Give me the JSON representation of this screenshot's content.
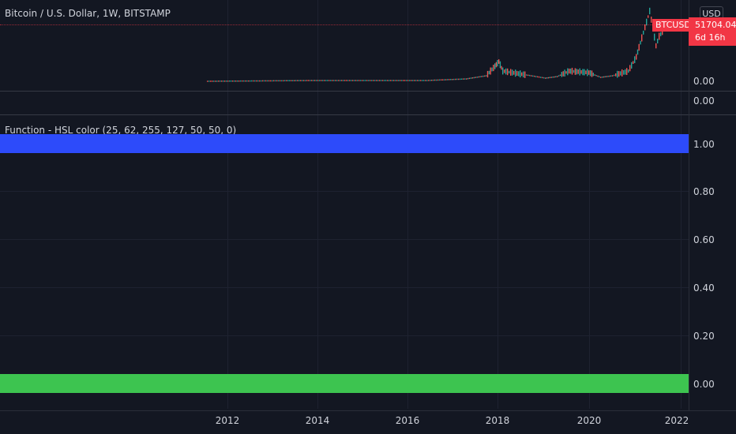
{
  "header": {
    "symbol_title": "Bitcoin / U.S. Dollar, 1W, BITSTAMP"
  },
  "price_scale": {
    "currency": "USD",
    "ticker": "BTCUSD",
    "last_price": "51704.04",
    "countdown": "6d 16h",
    "main_zero": "0.00",
    "pane2_zero": "0.00"
  },
  "indicator": {
    "title": "Function - HSL color (25, 62, 255, 127, 50, 50, 0)",
    "scale": [
      "1.00",
      "0.80",
      "0.60",
      "0.40",
      "0.20",
      "0.00"
    ]
  },
  "time_axis": {
    "labels": [
      "2012",
      "2014",
      "2016",
      "2018",
      "2020",
      "2022"
    ]
  },
  "colors": {
    "background": "#131722",
    "up_candle": "#26a69a",
    "down_candle": "#ef5350",
    "price_badge": "#f23645",
    "blue_bar": "#2d4bfa",
    "green_bar": "#3dc450"
  }
}
